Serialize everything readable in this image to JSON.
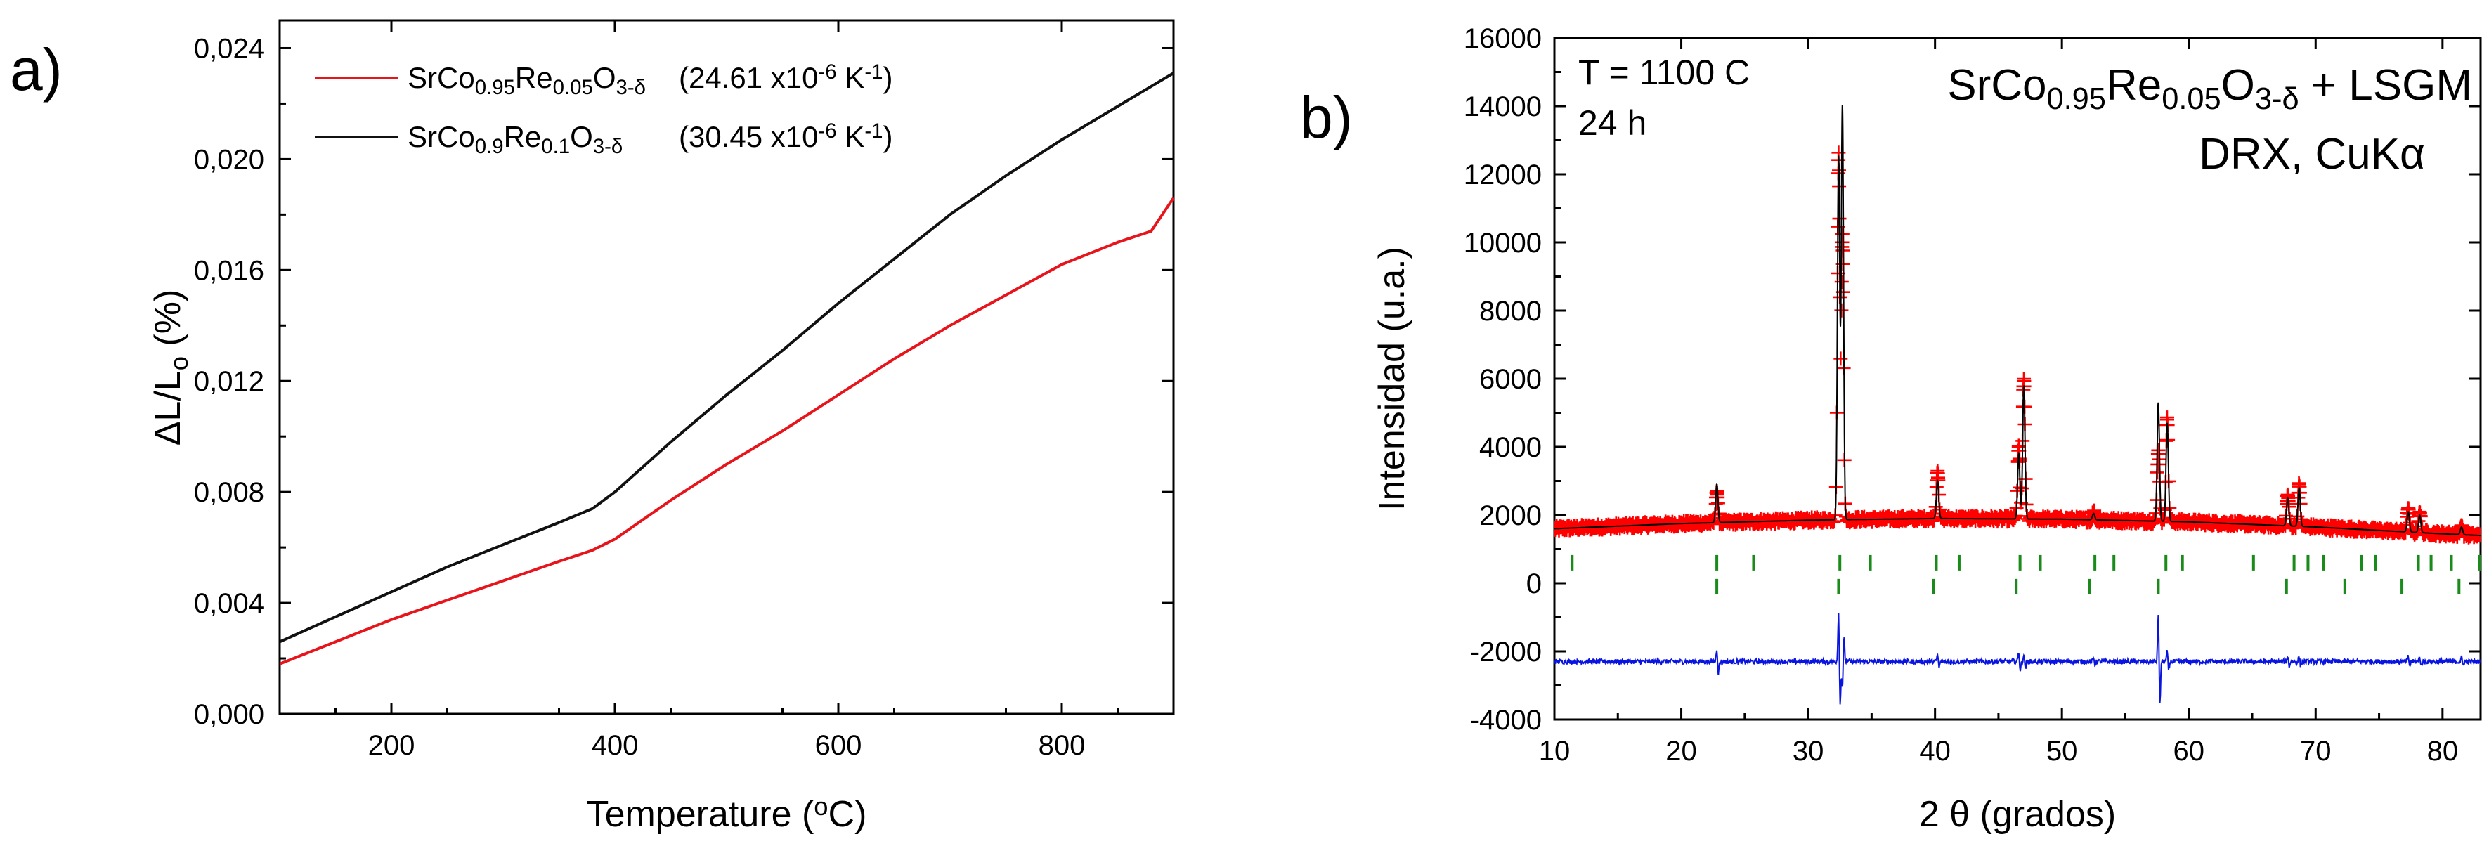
{
  "panel_labels": {
    "a": "a)",
    "b": "b)"
  },
  "chart_data": [
    {
      "id": "a",
      "type": "line",
      "xlabel": {
        "pre": "Temperature (",
        "sup": "o",
        "post": "C)"
      },
      "ylabel": {
        "pre": "ΔL/L",
        "sub": "o",
        "post": " (%)"
      },
      "xlim": [
        100,
        900
      ],
      "ylim": [
        0,
        0.025
      ],
      "xticks": [
        200,
        400,
        600,
        800
      ],
      "xtick_labels": [
        "200",
        "400",
        "600",
        "800"
      ],
      "yticks": [
        0,
        0.004,
        0.008,
        0.012,
        0.016,
        0.02,
        0.024
      ],
      "ytick_labels": [
        "0,000",
        "0,004",
        "0,008",
        "0,012",
        "0,016",
        "0,020",
        "0,024"
      ],
      "legend_position": "top-left",
      "series": [
        {
          "name": "SrCo0.95Re0.05O3-δ",
          "color": "#e8141b",
          "legend": {
            "parts": [
              {
                "t": "SrCo"
              },
              {
                "t": "0.95",
                "sub": true
              },
              {
                "t": "Re"
              },
              {
                "t": "0.05",
                "sub": true
              },
              {
                "t": "O"
              },
              {
                "t": "3-δ",
                "sub": true
              }
            ],
            "coef": [
              {
                "t": "(24.61 x10"
              },
              {
                "t": "-6",
                "sup": true
              },
              {
                "t": " K"
              },
              {
                "t": "-1",
                "sup": true
              },
              {
                "t": ")"
              }
            ]
          },
          "x": [
            100,
            150,
            200,
            250,
            300,
            350,
            380,
            400,
            450,
            500,
            550,
            600,
            650,
            700,
            750,
            800,
            850,
            880,
            900
          ],
          "y": [
            0.0018,
            0.0026,
            0.0034,
            0.0041,
            0.0048,
            0.0055,
            0.0059,
            0.0063,
            0.0077,
            0.009,
            0.0102,
            0.0115,
            0.0128,
            0.014,
            0.0151,
            0.0162,
            0.017,
            0.0174,
            0.0186
          ]
        },
        {
          "name": "SrCo0.9Re0.1O3-δ",
          "color": "#111111",
          "legend": {
            "parts": [
              {
                "t": "SrCo"
              },
              {
                "t": "0.9",
                "sub": true
              },
              {
                "t": "Re"
              },
              {
                "t": "0.1",
                "sub": true
              },
              {
                "t": "O"
              },
              {
                "t": "3-δ",
                "sub": true
              }
            ],
            "coef": [
              {
                "t": "(30.45 x10"
              },
              {
                "t": "-6",
                "sup": true
              },
              {
                "t": " K"
              },
              {
                "t": "-1",
                "sup": true
              },
              {
                "t": ")"
              }
            ]
          },
          "x": [
            100,
            150,
            200,
            250,
            300,
            350,
            380,
            400,
            450,
            500,
            550,
            600,
            650,
            700,
            750,
            800,
            850,
            900
          ],
          "y": [
            0.0026,
            0.0035,
            0.0044,
            0.0053,
            0.0061,
            0.0069,
            0.0074,
            0.008,
            0.0098,
            0.0115,
            0.0131,
            0.0148,
            0.0164,
            0.018,
            0.0194,
            0.0207,
            0.0219,
            0.0231
          ]
        }
      ]
    },
    {
      "id": "b",
      "type": "scatter",
      "xlabel": "2 θ (grados)",
      "ylabel": "Intensidad (u.a.)",
      "xlim": [
        10,
        83
      ],
      "ylim": [
        -4000,
        16000
      ],
      "xticks": [
        10,
        20,
        30,
        40,
        50,
        60,
        70,
        80
      ],
      "xtick_labels": [
        "10",
        "20",
        "30",
        "40",
        "50",
        "60",
        "70",
        "80"
      ],
      "yticks": [
        -4000,
        -2000,
        0,
        2000,
        4000,
        6000,
        8000,
        10000,
        12000,
        14000,
        16000
      ],
      "ytick_labels": [
        "-4000",
        "-2000",
        "0",
        "2000",
        "4000",
        "6000",
        "8000",
        "10000",
        "12000",
        "14000",
        "16000"
      ],
      "annotations": {
        "conditions": [
          "T = 1100 C",
          "24 h"
        ],
        "title_parts": [
          {
            "t": "SrCo"
          },
          {
            "t": "0.95",
            "sub": true
          },
          {
            "t": "Re"
          },
          {
            "t": "0.05",
            "sub": true
          },
          {
            "t": "O"
          },
          {
            "t": "3-δ",
            "sub": true
          },
          {
            "t": " + LSGM"
          }
        ],
        "technique": "DRX, CuKα"
      },
      "baseline": {
        "x": [
          10,
          20,
          30,
          40,
          50,
          60,
          70,
          80,
          83
        ],
        "y": [
          1600,
          1750,
          1850,
          1900,
          1880,
          1800,
          1650,
          1450,
          1400
        ]
      },
      "peaks": [
        {
          "x": 22.8,
          "obs": 2700,
          "calc": 2900,
          "diff": 400
        },
        {
          "x": 32.4,
          "obs": 12600,
          "calc": 12500,
          "diff": 1500
        },
        {
          "x": 32.7,
          "obs": 10200,
          "calc": 14000,
          "diff": -800
        },
        {
          "x": 40.2,
          "obs": 3300,
          "calc": 3000,
          "diff": 200
        },
        {
          "x": 46.6,
          "obs": 4000,
          "calc": 3800,
          "diff": 300
        },
        {
          "x": 47.0,
          "obs": 6000,
          "calc": 5800,
          "diff": 200
        },
        {
          "x": 52.5,
          "obs": 2100,
          "calc": 2050,
          "diff": 100
        },
        {
          "x": 57.6,
          "obs": 3900,
          "calc": 5300,
          "diff": 1500
        },
        {
          "x": 58.3,
          "obs": 4800,
          "calc": 4700,
          "diff": 300
        },
        {
          "x": 67.8,
          "obs": 2600,
          "calc": 2500,
          "diff": 150
        },
        {
          "x": 68.7,
          "obs": 2900,
          "calc": 2800,
          "diff": 150
        },
        {
          "x": 77.3,
          "obs": 2200,
          "calc": 2100,
          "diff": 150
        },
        {
          "x": 78.2,
          "obs": 2100,
          "calc": 2000,
          "diff": 150
        },
        {
          "x": 81.5,
          "obs": 1700,
          "calc": 1650,
          "diff": 100
        }
      ],
      "difference_offset": -2300,
      "bragg_phase1": {
        "y": 600,
        "color": "#1a8a1a",
        "x": [
          11.4,
          22.8,
          25.7,
          32.5,
          34.9,
          40.1,
          41.9,
          46.7,
          48.3,
          52.6,
          54.1,
          58.2,
          59.5,
          65.1,
          68.3,
          69.4,
          70.6,
          73.6,
          74.7,
          78.1,
          79.1,
          80.7,
          82.9
        ]
      },
      "bragg_phase2": {
        "y": -100,
        "color": "#1a8a1a",
        "x": [
          22.8,
          32.4,
          39.9,
          46.4,
          52.2,
          57.6,
          67.7,
          72.3,
          76.8,
          81.3
        ]
      },
      "observed_color": "#ff0000",
      "calculated_color": "#000000",
      "difference_color": "#0a14e0"
    }
  ]
}
